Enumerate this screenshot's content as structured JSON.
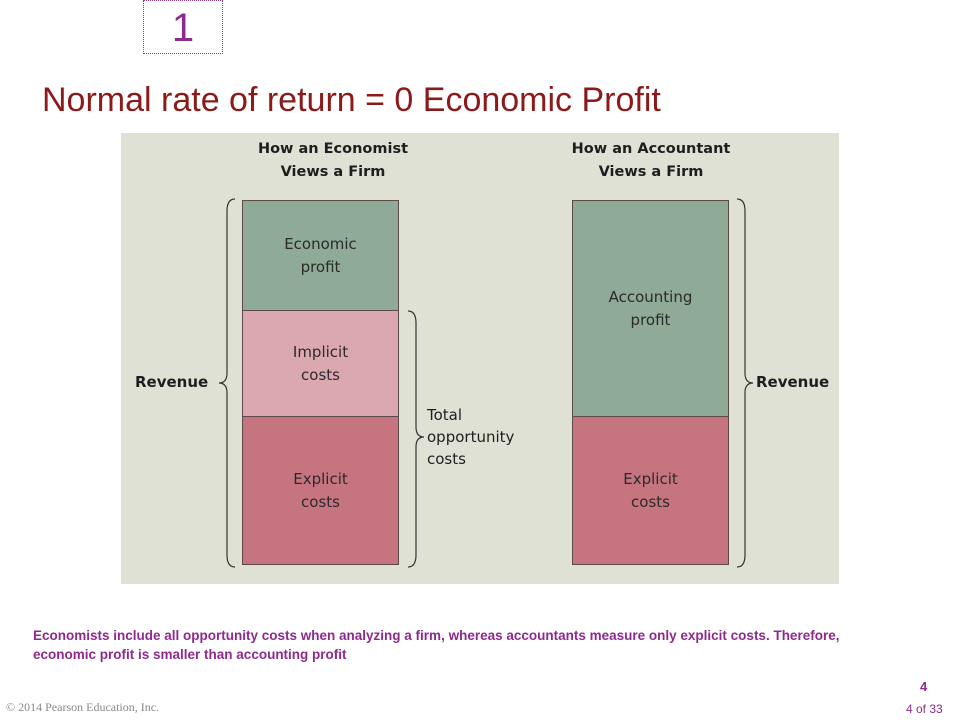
{
  "slide": {
    "number_box": "1",
    "title": "Normal rate of return = 0 Economic Profit"
  },
  "figure": {
    "economist": {
      "heading": "How an Economist\nViews a Firm",
      "segments": [
        {
          "label": "Economic\nprofit",
          "color": "#8faa97"
        },
        {
          "label": "Implicit\ncosts",
          "color": "#dca8b0"
        },
        {
          "label": "Explicit\ncosts",
          "color": "#c67580"
        }
      ],
      "revenue_label": "Revenue",
      "total_costs_label": "Total\nopportunity\ncosts"
    },
    "accountant": {
      "heading": "How an Accountant\nViews a Firm",
      "segments": [
        {
          "label": "Accounting\nprofit",
          "color": "#8faa97"
        },
        {
          "label": "Explicit\ncosts",
          "color": "#c67580"
        }
      ],
      "revenue_label": "Revenue"
    },
    "panel_background": "#e0e1d5"
  },
  "caption": "Economists include all opportunity costs when analyzing a firm, whereas accountants measure only explicit costs. Therefore, economic profit is smaller than accounting profit",
  "footer": {
    "copyright": "© 2014 Pearson Education, Inc.",
    "page_number": "4",
    "page_of": "4 of 33"
  },
  "colors": {
    "title": "#8b1a1a",
    "accent_purple": "#8e2a8e",
    "profit_green": "#8faa97",
    "implicit_pink": "#dca8b0",
    "explicit_rose": "#c67580"
  }
}
